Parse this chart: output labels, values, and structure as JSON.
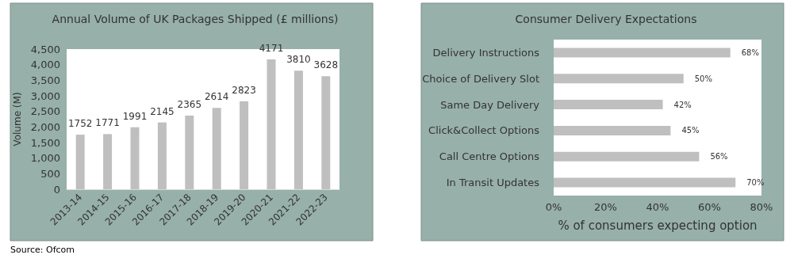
{
  "chart_data": [
    {
      "type": "bar",
      "title": "Annual Volume of UK Packages Shipped (£ millions)",
      "ylabel": "Volume (M)",
      "categories": [
        "2013-14",
        "2014-15",
        "2015-16",
        "2016-17",
        "2017-18",
        "2018-19",
        "2019-20",
        "2020-21",
        "2021-22",
        "2022-23"
      ],
      "values": [
        1752,
        1771,
        1991,
        2145,
        2365,
        2614,
        2823,
        4171,
        3810,
        3628
      ],
      "color": "#bfbfbf",
      "ylim": [
        0,
        4500
      ],
      "yticks": [
        {
          "value": 0,
          "label": "0"
        },
        {
          "value": 500,
          "label": "500"
        },
        {
          "value": 1000,
          "label": "1,000"
        },
        {
          "value": 1500,
          "label": "1,500"
        },
        {
          "value": 2000,
          "label": "2,000"
        },
        {
          "value": 2500,
          "label": "2,500"
        },
        {
          "value": 3000,
          "label": "3,000"
        },
        {
          "value": 3500,
          "label": "3,500"
        },
        {
          "value": 4000,
          "label": "4,000"
        },
        {
          "value": 4500,
          "label": "4,500"
        }
      ],
      "data_labels": true,
      "grid": false,
      "annotations": [
        "Source: Ofcom"
      ]
    },
    {
      "type": "bar",
      "orientation": "horizontal",
      "title": "Consumer Delivery Expectations",
      "xlabel": "% of consumers expecting option",
      "categories": [
        "Delivery Instructions",
        "Choice of Delivery Slot",
        "Same Day Delivery",
        "Click&Collect Options",
        "Call Centre Options",
        "In Transit Updates"
      ],
      "values": [
        68,
        50,
        42,
        45,
        56,
        70
      ],
      "color": "#bfbfbf",
      "value_labels": [
        "68%",
        "50%",
        "42%",
        "45%",
        "56%",
        "70%"
      ],
      "xlim": [
        0,
        80
      ],
      "xticks": [
        {
          "value": 0,
          "label": "0%"
        },
        {
          "value": 20,
          "label": "20%"
        },
        {
          "value": 40,
          "label": "40%"
        },
        {
          "value": 60,
          "label": "60%"
        },
        {
          "value": 80,
          "label": "80%"
        }
      ],
      "grid": false
    }
  ]
}
